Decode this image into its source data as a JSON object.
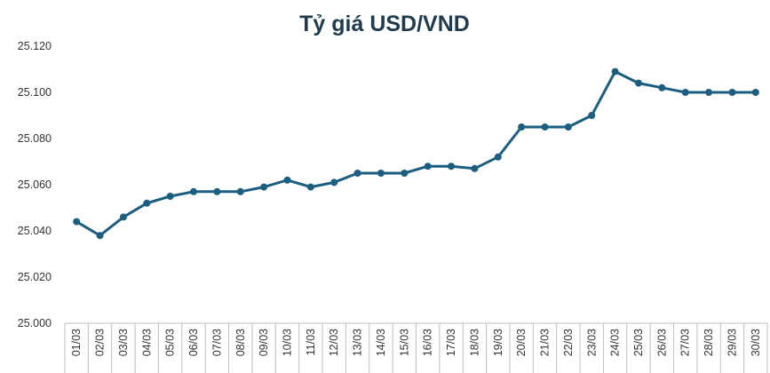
{
  "colors": {
    "series": "#1b5e80",
    "axis": "#bfbfbf",
    "text": "#333333",
    "title": "#1f3b4d"
  },
  "chart_data": {
    "type": "line",
    "title": "Tỷ giá USD/VND",
    "xlabel": "",
    "ylabel": "",
    "grid": false,
    "legend": "none",
    "ylim": [
      25000,
      25120
    ],
    "y_ticks": [
      25000,
      25020,
      25040,
      25060,
      25080,
      25100,
      25120
    ],
    "y_tick_labels": [
      "25.000",
      "25.020",
      "25.040",
      "25.060",
      "25.080",
      "25.100",
      "25.120"
    ],
    "categories": [
      "01/03",
      "02/03",
      "03/03",
      "04/03",
      "05/03",
      "06/03",
      "07/03",
      "08/03",
      "09/03",
      "10/03",
      "11/03",
      "12/03",
      "13/03",
      "14/03",
      "15/03",
      "16/03",
      "17/03",
      "18/03",
      "19/03",
      "20/03",
      "21/03",
      "22/03",
      "23/03",
      "24/03",
      "25/03",
      "26/03",
      "27/03",
      "28/03",
      "29/03",
      "30/03"
    ],
    "series": [
      {
        "name": "USD/VND",
        "values": [
          25044,
          25038,
          25046,
          25052,
          25055,
          25057,
          25057,
          25057,
          25059,
          25062,
          25059,
          25061,
          25065,
          25065,
          25065,
          25068,
          25068,
          25067,
          25072,
          25085,
          25085,
          25085,
          25090,
          25109,
          25104,
          25102,
          25100,
          25100,
          25100,
          25100
        ]
      }
    ]
  }
}
